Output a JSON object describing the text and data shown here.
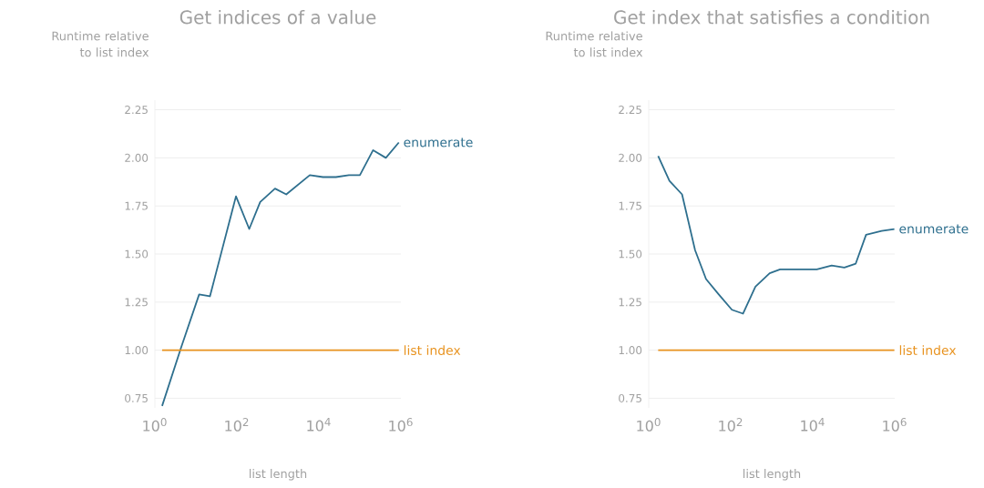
{
  "chart_data": [
    {
      "type": "line",
      "title": "Get indices of a value",
      "xlabel": "list length",
      "ylabel": "Runtime relative to list index",
      "log": "x",
      "grid": "y",
      "xlim": [
        1,
        1000000
      ],
      "xticks": [
        {
          "value": 1,
          "label": "10$^{0}$"
        },
        {
          "value": 100,
          "label": "10$^{2}$"
        },
        {
          "value": 10000,
          "label": "10$^{4}$"
        },
        {
          "value": 1000000,
          "label": "10$^{6}$"
        }
      ],
      "ylim": [
        0.7,
        2.3
      ],
      "yticks": [
        {
          "value": 0.75,
          "label": "0.75"
        },
        {
          "value": 1,
          "label": "1.00"
        },
        {
          "value": 1.25,
          "label": "1.25"
        },
        {
          "value": 1.5,
          "label": "1.50"
        },
        {
          "value": 1.75,
          "label": "1.75"
        },
        {
          "value": 2,
          "label": "2.00"
        },
        {
          "value": 2.25,
          "label": "2.25"
        }
      ],
      "series": [
        {
          "name": "enumerate",
          "color": "#2e6f8e",
          "x": [
            1.5,
            4.3,
            12,
            22,
            42,
            95,
            200,
            370,
            850,
            1600,
            6000,
            12600,
            26000,
            54000,
            100000,
            210000,
            430000,
            890000
          ],
          "values": [
            0.71,
            1.01,
            1.29,
            1.28,
            1.51,
            1.8,
            1.63,
            1.77,
            1.84,
            1.81,
            1.91,
            1.9,
            1.9,
            1.91,
            1.91,
            2.04,
            2.0,
            2.08
          ]
        },
        {
          "name": "list index",
          "color": "#e8921e",
          "x": [
            1.5,
            890000
          ],
          "values": [
            1,
            1
          ]
        }
      ]
    },
    {
      "type": "line",
      "title": "Get index that satisfies a condition",
      "xlabel": "list length",
      "ylabel": "Runtime relative to list index",
      "log": "x",
      "grid": "y",
      "xlim": [
        1,
        1000000
      ],
      "xticks": [
        {
          "value": 1,
          "label": "10$^{0}$"
        },
        {
          "value": 100,
          "label": "10$^{2}$"
        },
        {
          "value": 10000,
          "label": "10$^{4}$"
        },
        {
          "value": 1000000,
          "label": "10$^{6}$"
        }
      ],
      "ylim": [
        0.7,
        2.3
      ],
      "yticks": [
        {
          "value": 0.75,
          "label": "0.75"
        },
        {
          "value": 1,
          "label": "1.00"
        },
        {
          "value": 1.25,
          "label": "1.25"
        },
        {
          "value": 1.5,
          "label": "1.50"
        },
        {
          "value": 1.75,
          "label": "1.75"
        },
        {
          "value": 2,
          "label": "2.00"
        },
        {
          "value": 2.25,
          "label": "2.25"
        }
      ],
      "series": [
        {
          "name": "enumerate",
          "color": "#2e6f8e",
          "x": [
            1.7,
            3.2,
            6.5,
            13.5,
            25,
            51,
            107,
            200,
            400,
            890,
            1600,
            3600,
            6800,
            12600,
            29000,
            59000,
            112000,
            200000,
            480000,
            980000
          ],
          "values": [
            2.01,
            1.88,
            1.81,
            1.52,
            1.37,
            1.29,
            1.21,
            1.19,
            1.33,
            1.4,
            1.42,
            1.42,
            1.42,
            1.42,
            1.44,
            1.43,
            1.45,
            1.6,
            1.62,
            1.63
          ]
        },
        {
          "name": "list index",
          "color": "#e8921e",
          "x": [
            1.7,
            980000
          ],
          "values": [
            1,
            1
          ]
        }
      ]
    }
  ]
}
